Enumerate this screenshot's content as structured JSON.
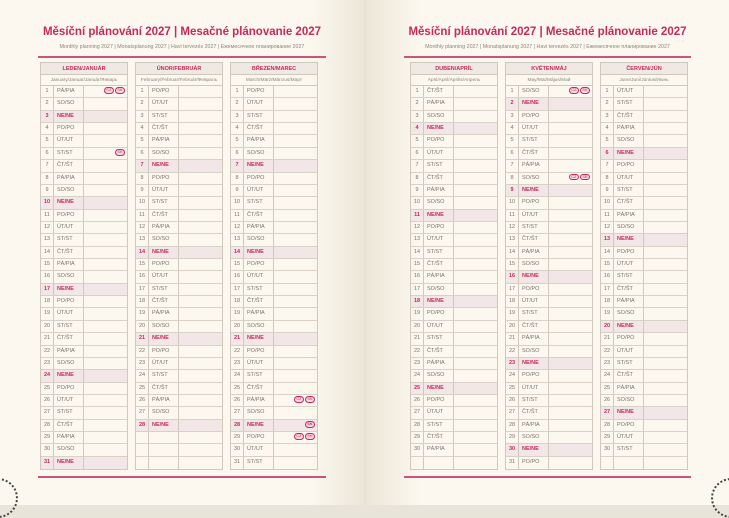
{
  "title": "Měsíční plánování 2027 | Mesačné plánovanie 2027",
  "subtitle": "Monthly planning 2027 | Monatsplanung 2027 | Havi tervezés 2027 | Ежемесячное планирование 2027",
  "accent": "#c42a5c",
  "weekdays": [
    "PO/PO",
    "ÚT/UT",
    "ST/ST",
    "ČT/ŠT",
    "PÁ/PIA",
    "SO/SO",
    "NE/NE"
  ],
  "months": [
    {
      "name": "LEDEN/JANUÁR",
      "sub": "January/Januar/Január/Январь",
      "first": 4,
      "days": 31,
      "holidays": {
        "1": [
          "CZ",
          "SK"
        ],
        "6": [
          "SK"
        ]
      }
    },
    {
      "name": "ÚNOR/FEBRUÁR",
      "sub": "February/Februar/Február/Февраль",
      "first": 0,
      "days": 28,
      "holidays": {}
    },
    {
      "name": "BŘEZEN/MAREC",
      "sub": "March/März/Március/Март",
      "first": 0,
      "days": 31,
      "holidays": {
        "26": [
          "CZ",
          "SK"
        ],
        "28": [
          "SK"
        ],
        "29": [
          "CZ",
          "SK"
        ]
      }
    },
    {
      "name": "DUBEN/APRÍL",
      "sub": "April/April/Április/Апрель",
      "first": 3,
      "days": 30,
      "holidays": {}
    },
    {
      "name": "KVĚTEN/MÁJ",
      "sub": "May/Mai/Május/Май",
      "first": 5,
      "days": 31,
      "holidays": {
        "1": [
          "CZ",
          "SK"
        ],
        "8": [
          "CZ",
          "SK"
        ]
      }
    },
    {
      "name": "ČERVEN/JÚN",
      "sub": "June/Juni/Június/Июнь",
      "first": 1,
      "days": 30,
      "holidays": {}
    }
  ]
}
